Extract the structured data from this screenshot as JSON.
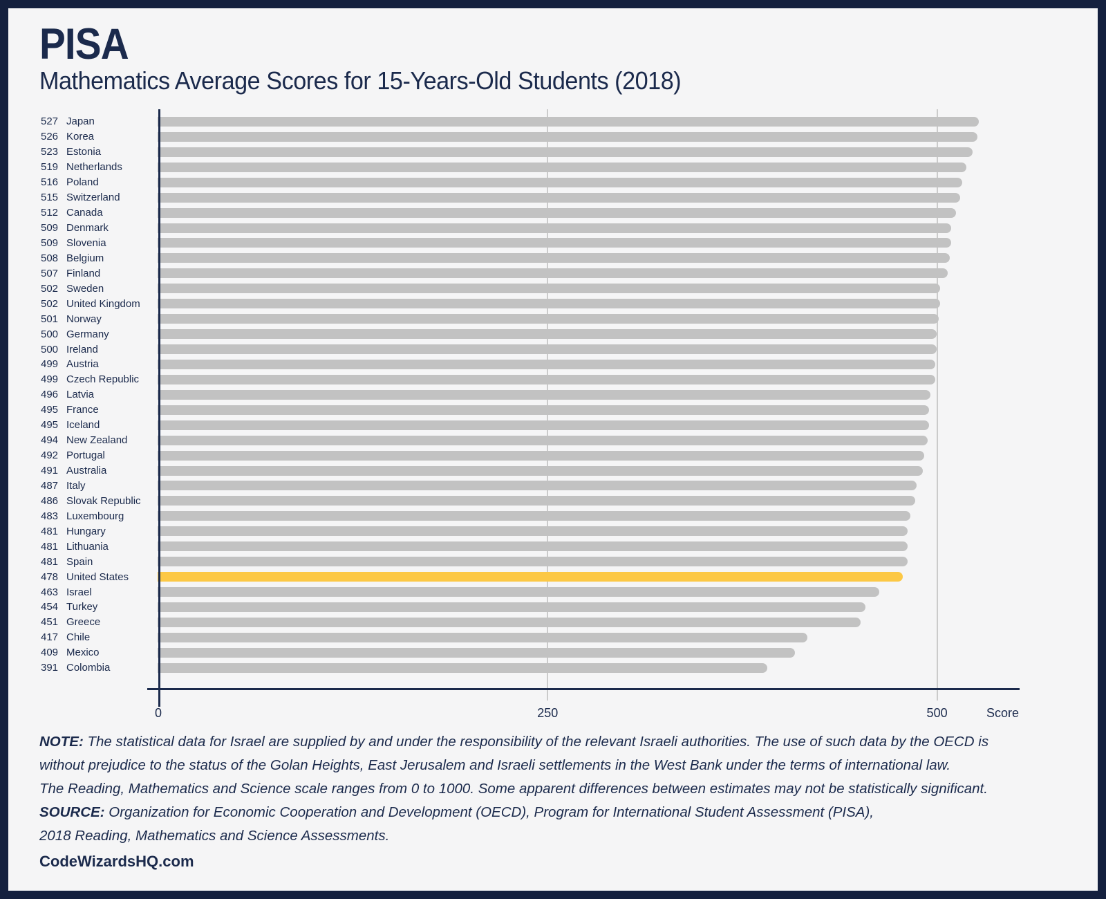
{
  "header": {
    "title": "PISA",
    "subtitle": "Mathematics Average Scores for 15-Years-Old Students (2018)"
  },
  "chart_data": {
    "type": "bar",
    "orientation": "horizontal",
    "title": "PISA — Mathematics Average Scores for 15-Years-Old Students (2018)",
    "categories": [
      "Japan",
      "Korea",
      "Estonia",
      "Netherlands",
      "Poland",
      "Switzerland",
      "Canada",
      "Denmark",
      "Slovenia",
      "Belgium",
      "Finland",
      "Sweden",
      "United Kingdom",
      "Norway",
      "Germany",
      "Ireland",
      "Austria",
      "Czech Republic",
      "Latvia",
      "France",
      "Iceland",
      "New Zealand",
      "Portugal",
      "Australia",
      "Italy",
      "Slovak Republic",
      "Luxembourg",
      "Hungary",
      "Lithuania",
      "Spain",
      "United States",
      "Israel",
      "Turkey",
      "Greece",
      "Chile",
      "Mexico",
      "Colombia"
    ],
    "values": [
      527,
      526,
      523,
      519,
      516,
      515,
      512,
      509,
      509,
      508,
      507,
      502,
      502,
      501,
      500,
      500,
      499,
      499,
      496,
      495,
      495,
      494,
      492,
      491,
      487,
      486,
      483,
      481,
      481,
      481,
      478,
      463,
      454,
      451,
      417,
      409,
      391
    ],
    "highlight_category": "United States",
    "highlight_value": 478,
    "xlabel": "Score",
    "ylabel": "",
    "x_ticks": [
      0,
      250,
      500
    ],
    "axis_range": [
      0,
      553
    ],
    "grid": "vertical",
    "legend": "none",
    "colors": {
      "bar": "#C2C2C2",
      "highlight": "#FCC845",
      "navy": "#1B2A4C",
      "gridline": "#CBCBCB",
      "frame": "#14203E",
      "panel": "#F5F5F6"
    }
  },
  "footnotes": {
    "note_label": "NOTE:",
    "note_lines": [
      "The statistical data for Israel are supplied by and under the responsibility of the relevant Israeli authorities. The use of such data by the OECD is",
      "without prejudice to the status of the Golan Heights, East Jerusalem and Israeli settlements in the West Bank under the terms of international law.",
      "The Reading, Mathematics and Science scale ranges from 0 to 1000. Some apparent differences between estimates may not be statistically significant."
    ],
    "source_label": "SOURCE:",
    "source_lines": [
      "Organization for Economic Cooperation and Development (OECD), Program for International Student Assessment (PISA),",
      "2018 Reading, Mathematics and Science Assessments."
    ],
    "footer": "CodeWizardsHQ.com"
  }
}
